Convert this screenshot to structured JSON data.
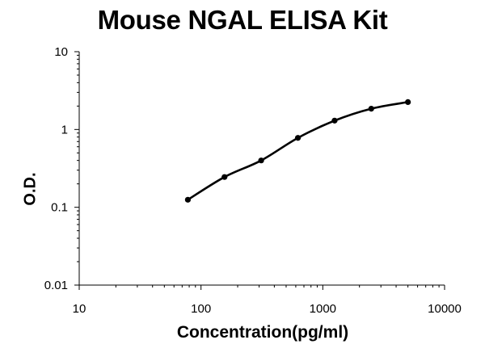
{
  "chart_data": {
    "type": "line",
    "title": "Mouse NGAL ELISA Kit",
    "xlabel": "Concentration(pg/ml)",
    "ylabel": "O.D.",
    "xscale": "log",
    "yscale": "log",
    "xlim": [
      10,
      10000
    ],
    "ylim": [
      0.01,
      10
    ],
    "xticks": [
      "10",
      "100",
      "1000",
      "10000"
    ],
    "yticks": [
      "10",
      "1",
      "0.1",
      "0.01"
    ],
    "grid": false,
    "series": [
      {
        "x": [
          78,
          156,
          312,
          625,
          1250,
          2500,
          5000
        ],
        "y": [
          0.125,
          0.245,
          0.4,
          0.78,
          1.3,
          1.85,
          2.25
        ]
      }
    ],
    "colors": {
      "line": "#000000",
      "marker": "#000000",
      "axis": "#000000"
    }
  }
}
